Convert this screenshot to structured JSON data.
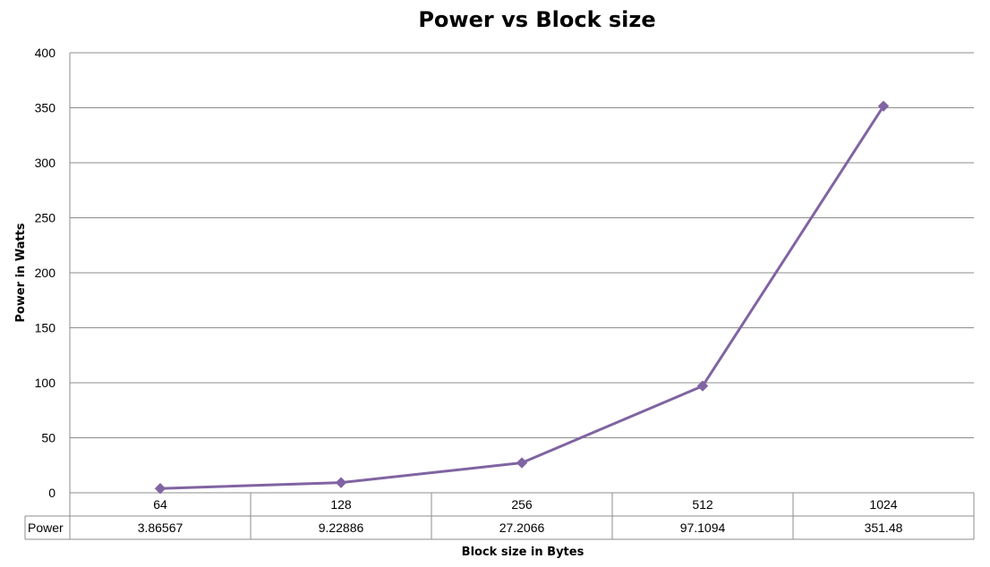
{
  "chart_data": {
    "type": "line",
    "title": "Power vs Block size",
    "xlabel": "Block size in Bytes",
    "ylabel": "Power in Watts",
    "categories": [
      "64",
      "128",
      "256",
      "512",
      "1024"
    ],
    "series": [
      {
        "name": "Power",
        "values": [
          3.86567,
          9.22886,
          27.2066,
          97.1094,
          351.48
        ],
        "value_labels": [
          "3.86567",
          "9.22886",
          "27.2066",
          "97.1094",
          "351.48"
        ],
        "color": "#8064a2",
        "marker": "diamond"
      }
    ],
    "ylim": [
      0,
      400
    ],
    "yticks": [
      "0",
      "50",
      "100",
      "150",
      "200",
      "250",
      "300",
      "350",
      "400"
    ],
    "grid": true,
    "legend": "data-table"
  }
}
